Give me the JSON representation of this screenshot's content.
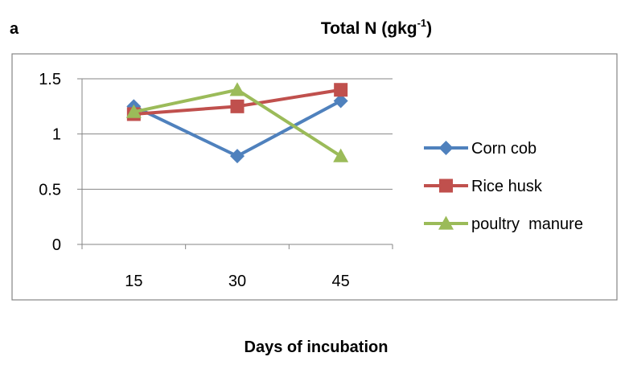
{
  "chart_data": {
    "type": "line",
    "panel_label": "a",
    "title": "Total N (gkg",
    "title_superscript": "-1",
    "title_suffix": ")",
    "xlabel": "Days of incubation",
    "ylabel": "",
    "categories": [
      "15",
      "30",
      "45"
    ],
    "ylim": [
      0,
      1.5
    ],
    "yticks": [
      0,
      0.5,
      1,
      1.5
    ],
    "ytick_labels": [
      "0",
      "0.5",
      "1",
      "1.5"
    ],
    "grid": "horizontal",
    "legend_position": "right",
    "series": [
      {
        "name": "Corn cob",
        "values": [
          1.25,
          0.8,
          1.3
        ],
        "color": "#4F81BD",
        "marker": "diamond"
      },
      {
        "name": "Rice husk",
        "values": [
          1.18,
          1.25,
          1.4
        ],
        "color": "#C0504D",
        "marker": "square"
      },
      {
        "name": "poultry  manure",
        "values": [
          1.2,
          1.4,
          0.8
        ],
        "color": "#9BBB59",
        "marker": "triangle"
      }
    ]
  }
}
